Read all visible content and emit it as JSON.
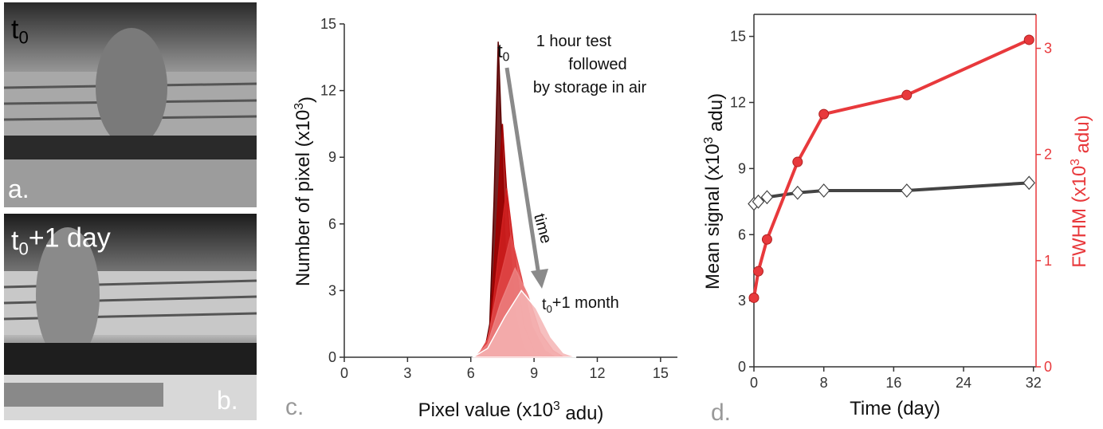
{
  "photos": [
    {
      "label": [
        "t",
        "0"
      ],
      "letter": "a."
    },
    {
      "label": [
        "t",
        "0",
        "+1 day"
      ],
      "letter": "b."
    }
  ],
  "chart_data": [
    {
      "type": "area",
      "panel": "c.",
      "xlabel": [
        "Pixel value (x10",
        "3",
        " adu)"
      ],
      "ylabel": [
        "Number of pixel (x10",
        "3",
        ")"
      ],
      "xlim": [
        0,
        15.8
      ],
      "xticks": [
        0,
        3,
        6,
        9,
        12,
        15
      ],
      "ylim": [
        0,
        15
      ],
      "yticks": [
        0,
        3,
        6,
        9,
        12,
        15
      ],
      "series": [
        {
          "color": "#5a0000",
          "x": [
            6.6,
            6.9,
            7.1,
            7.3,
            7.5,
            7.7,
            8.0,
            8.4
          ],
          "values": [
            0,
            1.5,
            7,
            14.2,
            9,
            3,
            0.6,
            0
          ]
        },
        {
          "color": "#a00000",
          "x": [
            6.5,
            6.9,
            7.2,
            7.5,
            7.8,
            8.1,
            8.5,
            9.0
          ],
          "values": [
            0,
            1.2,
            5.5,
            10.5,
            6,
            2,
            0.4,
            0
          ]
        },
        {
          "color": "#d02020",
          "x": [
            6.4,
            6.9,
            7.3,
            7.7,
            8.1,
            8.5,
            9.0,
            9.5
          ],
          "values": [
            0,
            1,
            4.5,
            7.6,
            4.5,
            1.5,
            0.3,
            0
          ]
        },
        {
          "color": "#e04848",
          "x": [
            6.3,
            6.8,
            7.3,
            7.9,
            8.4,
            8.9,
            9.5,
            10.0
          ],
          "values": [
            0,
            0.8,
            3.2,
            5.5,
            3.6,
            1.4,
            0.3,
            0
          ]
        },
        {
          "color": "#ec8080",
          "x": [
            6.2,
            6.8,
            7.4,
            8.1,
            8.7,
            9.3,
            9.9,
            10.4
          ],
          "values": [
            0,
            0.6,
            2.4,
            4,
            2.8,
            1.1,
            0.3,
            0
          ]
        },
        {
          "color": "#f4b4b4",
          "x": [
            6.1,
            6.8,
            7.6,
            8.4,
            9.1,
            9.8,
            10.4,
            11.0
          ],
          "values": [
            0,
            0.4,
            1.8,
            3,
            2.2,
            0.9,
            0.2,
            0
          ]
        }
      ],
      "start_label": [
        "t",
        "0"
      ],
      "end_label": [
        "t",
        "0",
        "+1 month"
      ],
      "arrow_label": "time",
      "note": [
        "1 hour test",
        "followed",
        "by storage in air"
      ]
    },
    {
      "type": "line",
      "panel": "d.",
      "xlabel": "Time (day)",
      "ylabel": [
        "Mean signal (x10",
        "3",
        " adu)"
      ],
      "y2label": [
        "FWHM (x10",
        "3",
        " adu)"
      ],
      "x": [
        0,
        0.5,
        1.5,
        5,
        8,
        17.5,
        31.5
      ],
      "xlim": [
        0,
        32.3
      ],
      "xticks": [
        0,
        8,
        16,
        24,
        32
      ],
      "ylim": [
        0,
        16
      ],
      "yticks": [
        0,
        3,
        6,
        9,
        12,
        15
      ],
      "y2lim": [
        0,
        3.32
      ],
      "y2ticks": [
        0,
        1,
        2,
        3
      ],
      "y2color": "#e8393c",
      "series": [
        {
          "color": "#444444",
          "marker": "diamond",
          "values": [
            7.4,
            7.5,
            7.7,
            7.9,
            8.0,
            8.0,
            8.35
          ]
        },
        {
          "color": "#e8393c",
          "marker": "circle",
          "axis": "y2",
          "values": [
            0.65,
            0.9,
            1.2,
            1.93,
            2.38,
            2.56,
            3.08
          ]
        }
      ]
    }
  ]
}
